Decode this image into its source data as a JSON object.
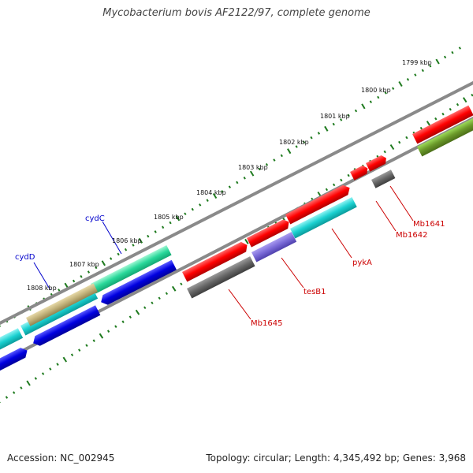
{
  "title": "Mycobacterium bovis AF2122/97, complete genome",
  "footer": {
    "accession": "Accession: NC_002945",
    "summary": "Topology: circular; Length: 4,345,492 bp; Genes: 3,968"
  },
  "colors": {
    "backbone": "#8a8a8a",
    "tick": "#1e7a1e",
    "gene_label": "#cc0000",
    "gene_label_blue": "#0000cc"
  },
  "ruler": {
    "labels": [
      "1799 kbp",
      "1800 kbp",
      "1801 kbp",
      "1802 kbp",
      "1803 kbp",
      "1804 kbp",
      "1805 kbp",
      "1806 kbp",
      "1807 kbp",
      "1808 kbp"
    ]
  },
  "genes": {
    "labels": [
      {
        "name": "Mb1641",
        "color": "#cc0000"
      },
      {
        "name": "Mb1642",
        "color": "#cc0000"
      },
      {
        "name": "pykA",
        "color": "#cc0000"
      },
      {
        "name": "tesB1",
        "color": "#cc0000"
      },
      {
        "name": "Mb1645",
        "color": "#cc0000"
      },
      {
        "name": "cydC",
        "color": "#0000cc"
      },
      {
        "name": "cydD",
        "color": "#0000cc"
      }
    ]
  }
}
